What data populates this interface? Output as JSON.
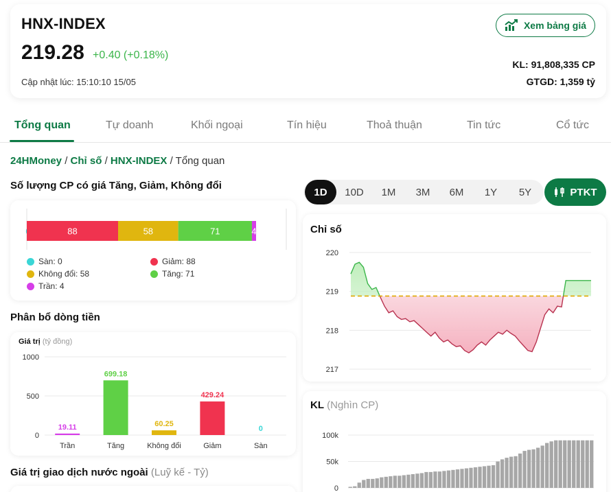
{
  "header": {
    "title": "HNX-INDEX",
    "price": "219.28",
    "change": "+0.40 (+0.18%)",
    "updated": "Cập nhật lúc: 15:10:10 15/05",
    "price_table_button": "Xem bảng giá",
    "volume": "KL: 91,808,335 CP",
    "value": "GTGD: 1,359 tỷ"
  },
  "tabs": [
    "Tổng quan",
    "Tự doanh",
    "Khối ngoại",
    "Tín hiệu",
    "Thoả thuận",
    "Tin tức",
    "Cổ tức"
  ],
  "breadcrumb": {
    "home": "24HMoney",
    "sep1": "/",
    "section": "Chỉ số",
    "sep2": "/",
    "index": "HNX-INDEX",
    "sep3": "/",
    "current": "Tổng quan"
  },
  "breadth": {
    "title": "Số lượng CP có giá Tăng, Giảm, Không đổi",
    "legend": {
      "floor": "Sàn: 0",
      "down": "Giảm: 88",
      "unchanged": "Không đổi: 58",
      "up": "Tăng: 71",
      "ceiling": "Trần: 4"
    },
    "colors": {
      "floor": "#3ad6d6",
      "down": "#f0334f",
      "unchanged": "#e0b60f",
      "up": "#5fd046",
      "ceiling": "#d63ee8"
    }
  },
  "money_flow": {
    "title": "Phân bổ dòng tiền",
    "unit_label": "Giá trị",
    "unit_sub": "(tỷ đồng)"
  },
  "foreign": {
    "title": "Giá trị giao dịch nước ngoài",
    "subtitle": "(Luỹ kế - Tỷ)"
  },
  "ranges": [
    "1D",
    "10D",
    "1M",
    "3M",
    "6M",
    "1Y",
    "5Y"
  ],
  "active_range": "1D",
  "ptkt_button": "PTKT",
  "index_chart": {
    "title": "Chỉ số"
  },
  "volume_chart": {
    "title": "KL",
    "subtitle": "(Nghìn CP)"
  },
  "chart_data": [
    {
      "type": "bar",
      "orientation": "horizontal-stacked",
      "categories": [
        "Sàn",
        "Giảm",
        "Không đổi",
        "Tăng",
        "Trần"
      ],
      "values": [
        0,
        88,
        58,
        71,
        4
      ],
      "data_labels": [
        "0",
        "88",
        "58",
        "71",
        "4"
      ],
      "colors": [
        "#3ad6d6",
        "#f0334f",
        "#e0b60f",
        "#5fd046",
        "#d63ee8"
      ],
      "legend_position": "bottom"
    },
    {
      "type": "bar",
      "categories": [
        "Trần",
        "Tăng",
        "Không đổi",
        "Giảm",
        "Sàn"
      ],
      "values": [
        19.11,
        699.18,
        60.25,
        429.24,
        0
      ],
      "data_labels": [
        "19.11",
        "699.18",
        "60.25",
        "429.24",
        "0"
      ],
      "colors": [
        "#d63ee8",
        "#5fd046",
        "#e0b60f",
        "#f0334f",
        "#3ad6d6"
      ],
      "ylim": [
        0,
        1000
      ],
      "yticks": [
        "0",
        "500",
        "1000"
      ],
      "grid": true
    },
    {
      "type": "line",
      "yticks": [
        "220",
        "219",
        "218",
        "217"
      ],
      "ylim": [
        217,
        220.2
      ],
      "reference": 218.88,
      "y": [
        219.45,
        219.7,
        219.75,
        219.62,
        219.2,
        219.05,
        219.1,
        218.85,
        218.62,
        218.45,
        218.5,
        218.35,
        218.28,
        218.3,
        218.22,
        218.25,
        218.15,
        218.05,
        217.95,
        217.85,
        217.95,
        217.8,
        217.7,
        217.75,
        217.65,
        217.58,
        217.6,
        217.48,
        217.42,
        217.5,
        217.62,
        217.7,
        217.62,
        217.75,
        217.85,
        217.95,
        217.9,
        218.0,
        217.92,
        217.85,
        217.72,
        217.6,
        217.48,
        217.45,
        217.7,
        218.05,
        218.4,
        218.55,
        218.45,
        218.62,
        218.6,
        219.28,
        219.28,
        219.28,
        219.28,
        219.28,
        219.28,
        219.28
      ],
      "grid": true
    },
    {
      "type": "bar",
      "ylim": [
        0,
        100
      ],
      "yticks": [
        "0",
        "50k",
        "100k"
      ],
      "values": [
        2,
        3,
        10,
        15,
        17,
        17,
        18,
        20,
        21,
        22,
        23,
        23,
        24,
        25,
        26,
        27,
        28,
        30,
        30,
        31,
        31,
        32,
        33,
        34,
        35,
        36,
        37,
        38,
        39,
        40,
        41,
        42,
        43,
        50,
        54,
        57,
        59,
        60,
        65,
        70,
        72,
        73,
        76,
        80,
        85,
        88,
        90,
        90,
        90,
        90,
        90,
        90,
        90,
        90,
        90
      ],
      "grid": true
    }
  ]
}
